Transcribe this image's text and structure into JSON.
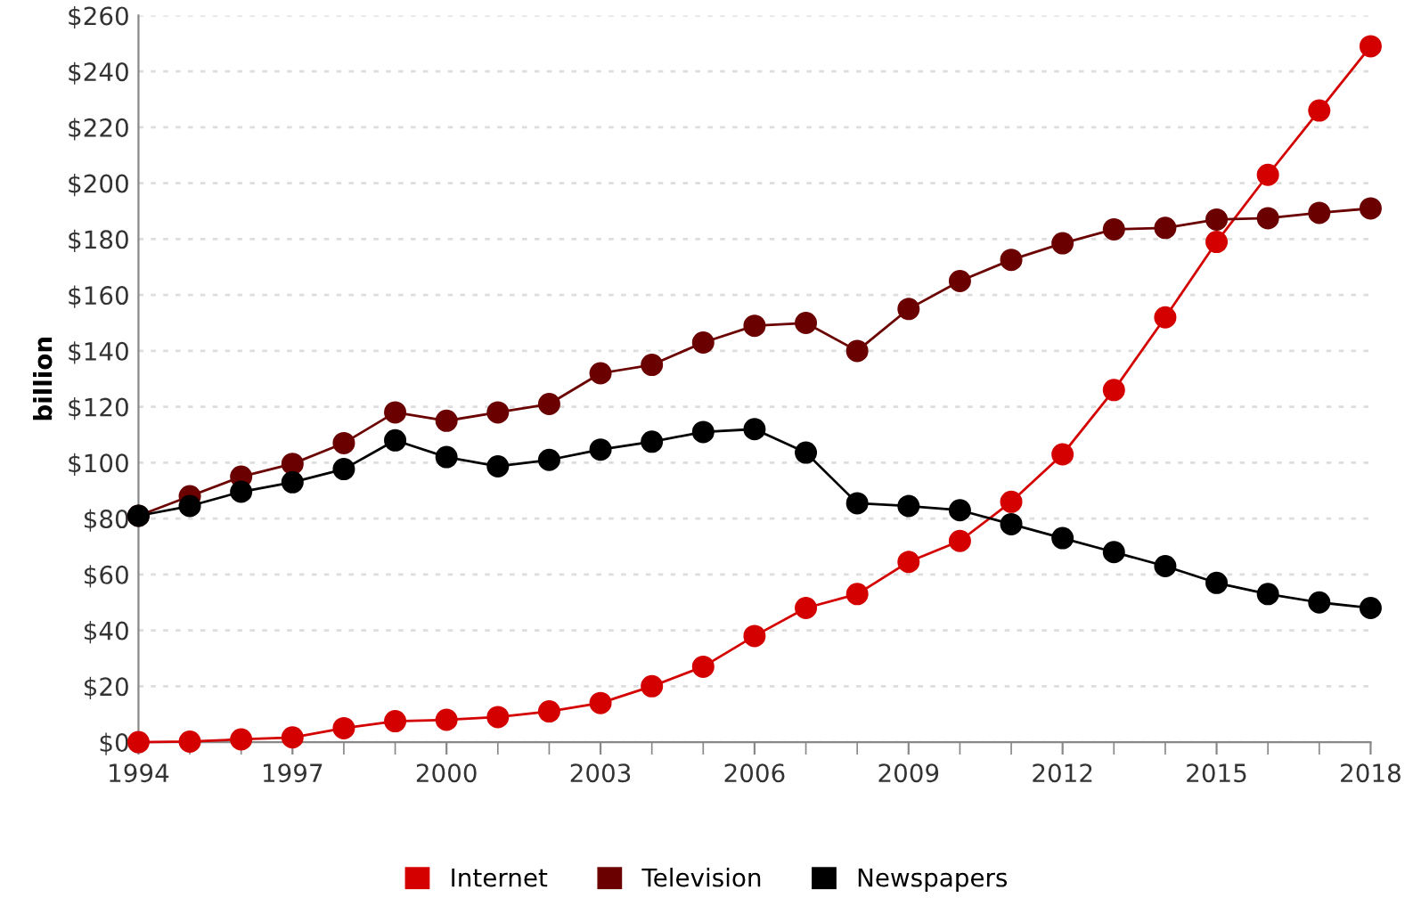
{
  "chart_data": {
    "type": "line",
    "ylabel": "billion",
    "x": [
      1994,
      1995,
      1996,
      1997,
      1998,
      1999,
      2000,
      2001,
      2002,
      2003,
      2004,
      2005,
      2006,
      2007,
      2008,
      2009,
      2010,
      2011,
      2012,
      2013,
      2014,
      2015,
      2016,
      2017,
      2018
    ],
    "series": [
      {
        "name": "Internet",
        "color": "#d40000",
        "values": [
          0,
          0.2,
          1,
          1.7,
          5,
          7.5,
          8,
          9,
          11,
          14,
          20,
          27,
          38,
          48,
          53,
          64.5,
          72,
          86,
          103,
          126,
          152,
          179,
          203,
          226,
          249
        ]
      },
      {
        "name": "Television",
        "color": "#6b0000",
        "values": [
          81,
          88,
          95,
          99.6,
          107,
          118,
          115,
          118,
          121,
          132,
          135,
          143,
          149,
          150,
          140,
          155,
          165,
          172.6,
          178.5,
          183.5,
          184,
          187,
          187.5,
          189.4,
          191
        ]
      },
      {
        "name": "Newspapers",
        "color": "#000000",
        "values": [
          81,
          84.5,
          89.6,
          93,
          97.7,
          108,
          102,
          98.7,
          101,
          104.7,
          107.5,
          111,
          112,
          103.6,
          85.5,
          84.5,
          83,
          78,
          73,
          68,
          63,
          57,
          53,
          50,
          48
        ]
      }
    ],
    "xlim": [
      1994,
      2018
    ],
    "xticks": [
      1994,
      1997,
      2000,
      2003,
      2006,
      2009,
      2012,
      2015,
      2018
    ],
    "ylim": [
      0,
      260
    ],
    "yticks": [
      {
        "value": 0,
        "label": "$0"
      },
      {
        "value": 20,
        "label": "$20"
      },
      {
        "value": 40,
        "label": "$40"
      },
      {
        "value": 60,
        "label": "$60"
      },
      {
        "value": 80,
        "label": "$80"
      },
      {
        "value": 100,
        "label": "$100"
      },
      {
        "value": 120,
        "label": "$120"
      },
      {
        "value": 140,
        "label": "$140"
      },
      {
        "value": 160,
        "label": "$160"
      },
      {
        "value": 180,
        "label": "$180"
      },
      {
        "value": 200,
        "label": "$200"
      },
      {
        "value": 220,
        "label": "$220"
      },
      {
        "value": 240,
        "label": "$240"
      },
      {
        "value": 260,
        "label": "$260"
      }
    ],
    "grid": "y",
    "legend": "bottom",
    "marker": "circle",
    "line_style": "solid"
  }
}
